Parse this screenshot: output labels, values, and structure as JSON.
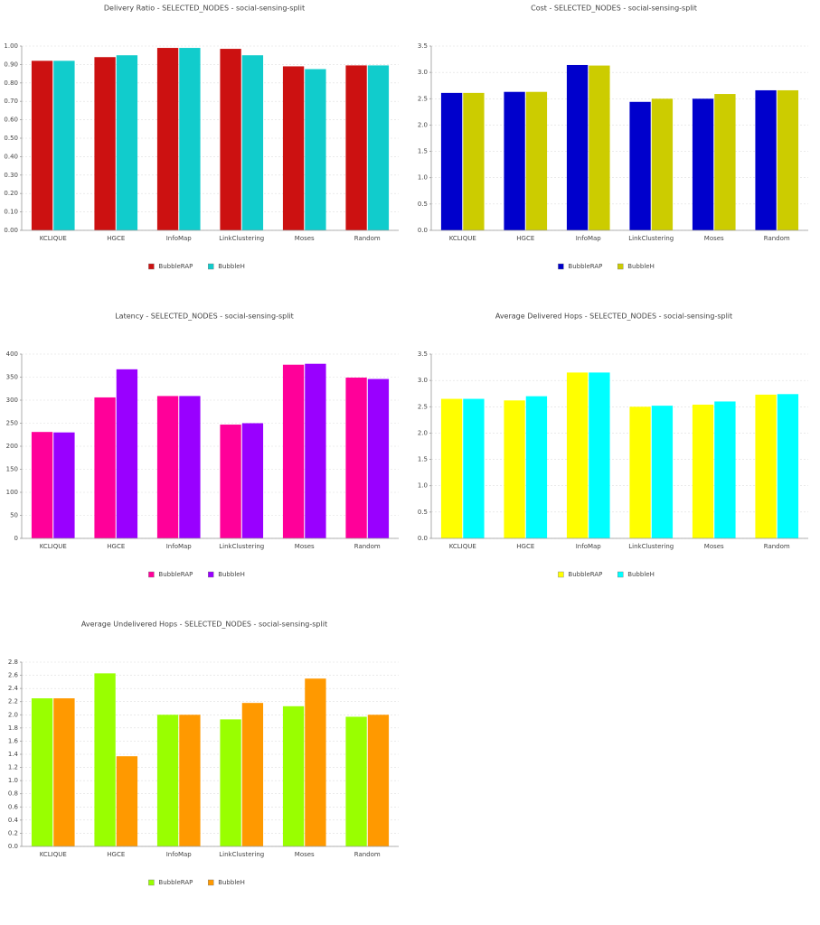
{
  "chart_data": [
    {
      "type": "bar",
      "title": "Delivery Ratio - SELECTED_NODES - social-sensing-split",
      "categories": [
        "KCLIQUE",
        "HGCE",
        "InfoMap",
        "LinkClustering",
        "Moses",
        "Random"
      ],
      "series": [
        {
          "name": "BubbleRAP",
          "color": "#cc1111",
          "values": [
            0.92,
            0.94,
            0.99,
            0.985,
            0.89,
            0.895
          ]
        },
        {
          "name": "BubbleH",
          "color": "#11cccc",
          "values": [
            0.92,
            0.95,
            0.99,
            0.95,
            0.875,
            0.895
          ]
        }
      ],
      "ylim": [
        0,
        1.0
      ],
      "yticks": [
        {
          "value": 0,
          "label": "0.00"
        },
        {
          "value": 0.1,
          "label": "0.10"
        },
        {
          "value": 0.2,
          "label": "0.20"
        },
        {
          "value": 0.3,
          "label": "0.30"
        },
        {
          "value": 0.4,
          "label": "0.40"
        },
        {
          "value": 0.5,
          "label": "0.50"
        },
        {
          "value": 0.6,
          "label": "0.60"
        },
        {
          "value": 0.7,
          "label": "0.70"
        },
        {
          "value": 0.8,
          "label": "0.80"
        },
        {
          "value": 0.9,
          "label": "0.90"
        },
        {
          "value": 1.0,
          "label": "1.00"
        }
      ],
      "grid": true
    },
    {
      "type": "bar",
      "title": "Cost - SELECTED_NODES - social-sensing-split",
      "categories": [
        "KCLIQUE",
        "HGCE",
        "InfoMap",
        "LinkClustering",
        "Moses",
        "Random"
      ],
      "series": [
        {
          "name": "BubbleRAP",
          "color": "#0000cc",
          "values": [
            2.61,
            2.63,
            3.14,
            2.44,
            2.5,
            2.66
          ]
        },
        {
          "name": "BubbleH",
          "color": "#cccc00",
          "values": [
            2.61,
            2.63,
            3.13,
            2.5,
            2.59,
            2.66
          ]
        }
      ],
      "ylim": [
        0,
        3.5
      ],
      "yticks": [
        {
          "value": 0,
          "label": "0.0"
        },
        {
          "value": 0.5,
          "label": "0.5"
        },
        {
          "value": 1,
          "label": "1.0"
        },
        {
          "value": 1.5,
          "label": "1.5"
        },
        {
          "value": 2,
          "label": "2.0"
        },
        {
          "value": 2.5,
          "label": "2.5"
        },
        {
          "value": 3,
          "label": "3.0"
        },
        {
          "value": 3.5,
          "label": "3.5"
        }
      ],
      "grid": true
    },
    {
      "type": "bar",
      "title": "Latency - SELECTED_NODES - social-sensing-split",
      "categories": [
        "KCLIQUE",
        "HGCE",
        "InfoMap",
        "LinkClustering",
        "Moses",
        "Random"
      ],
      "series": [
        {
          "name": "BubbleRAP",
          "color": "#ff0099",
          "values": [
            231,
            306,
            309,
            247,
            377,
            349
          ]
        },
        {
          "name": "BubbleH",
          "color": "#9900ff",
          "values": [
            230,
            367,
            309,
            250,
            379,
            346
          ]
        }
      ],
      "ylim": [
        0,
        400
      ],
      "yticks": [
        0,
        50,
        100,
        150,
        200,
        250,
        300,
        350,
        400
      ],
      "grid": true
    },
    {
      "type": "bar",
      "title": "Average Delivered Hops - SELECTED_NODES - social-sensing-split",
      "categories": [
        "KCLIQUE",
        "HGCE",
        "InfoMap",
        "LinkClustering",
        "Moses",
        "Random"
      ],
      "series": [
        {
          "name": "BubbleRAP",
          "color": "#ffff00",
          "values": [
            2.65,
            2.62,
            3.15,
            2.5,
            2.54,
            2.73
          ]
        },
        {
          "name": "BubbleH",
          "color": "#00ffff",
          "values": [
            2.65,
            2.7,
            3.15,
            2.52,
            2.6,
            2.74
          ]
        }
      ],
      "ylim": [
        0,
        3.5
      ],
      "yticks": [
        {
          "value": 0,
          "label": "0.0"
        },
        {
          "value": 0.5,
          "label": "0.5"
        },
        {
          "value": 1,
          "label": "1.0"
        },
        {
          "value": 1.5,
          "label": "1.5"
        },
        {
          "value": 2,
          "label": "2.0"
        },
        {
          "value": 2.5,
          "label": "2.5"
        },
        {
          "value": 3,
          "label": "3.0"
        },
        {
          "value": 3.5,
          "label": "3.5"
        }
      ],
      "grid": true
    },
    {
      "type": "bar",
      "title": "Average Undelivered Hops - SELECTED_NODES - social-sensing-split",
      "categories": [
        "KCLIQUE",
        "HGCE",
        "InfoMap",
        "LinkClustering",
        "Moses",
        "Random"
      ],
      "series": [
        {
          "name": "BubbleRAP",
          "color": "#99ff00",
          "values": [
            2.25,
            2.63,
            2.0,
            1.93,
            2.13,
            1.97
          ]
        },
        {
          "name": "BubbleH",
          "color": "#ff9900",
          "values": [
            2.25,
            1.37,
            2.0,
            2.18,
            2.55,
            2.0
          ]
        }
      ],
      "ylim": [
        0,
        2.8
      ],
      "yticks": [
        {
          "value": 0,
          "label": "0.0"
        },
        {
          "value": 0.2,
          "label": "0.2"
        },
        {
          "value": 0.4,
          "label": "0.4"
        },
        {
          "value": 0.6,
          "label": "0.6"
        },
        {
          "value": 0.8,
          "label": "0.8"
        },
        {
          "value": 1,
          "label": "1.0"
        },
        {
          "value": 1.2,
          "label": "1.2"
        },
        {
          "value": 1.4,
          "label": "1.4"
        },
        {
          "value": 1.6,
          "label": "1.6"
        },
        {
          "value": 1.8,
          "label": "1.8"
        },
        {
          "value": 2,
          "label": "2.0"
        },
        {
          "value": 2.2,
          "label": "2.2"
        },
        {
          "value": 2.4,
          "label": "2.4"
        },
        {
          "value": 2.6,
          "label": "2.6"
        },
        {
          "value": 2.8,
          "label": "2.8"
        }
      ],
      "grid": true
    }
  ]
}
